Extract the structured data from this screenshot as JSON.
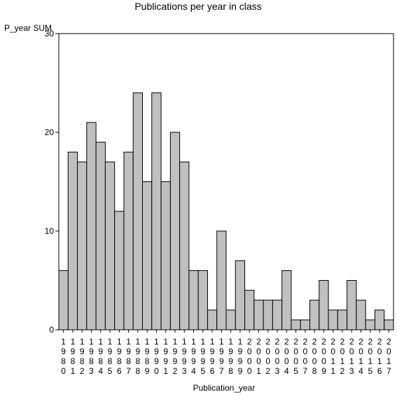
{
  "chart_data": {
    "type": "bar",
    "title": "Publications per year in class",
    "ylabel": "P_year SUM",
    "xlabel": "Publication_year",
    "ylim": [
      0,
      30
    ],
    "yticks": [
      0,
      10,
      20,
      30
    ],
    "grid": false,
    "legend": "none",
    "bar_color": "#c0c0c0",
    "categories": [
      "1980",
      "1981",
      "1982",
      "1983",
      "1984",
      "1985",
      "1986",
      "1987",
      "1988",
      "1989",
      "1990",
      "1991",
      "1992",
      "1993",
      "1994",
      "1995",
      "1996",
      "1997",
      "1998",
      "1999",
      "2000",
      "2001",
      "2002",
      "2003",
      "2004",
      "2005",
      "2007",
      "2008",
      "2009",
      "2011",
      "2012",
      "2013",
      "2014",
      "2015",
      "2016",
      "2017"
    ],
    "values": [
      6,
      18,
      17,
      21,
      19,
      17,
      12,
      18,
      24,
      15,
      24,
      15,
      20,
      17,
      6,
      6,
      2,
      10,
      2,
      7,
      4,
      3,
      3,
      3,
      6,
      1,
      1,
      3,
      5,
      2,
      2,
      5,
      3,
      1,
      2,
      1
    ]
  }
}
